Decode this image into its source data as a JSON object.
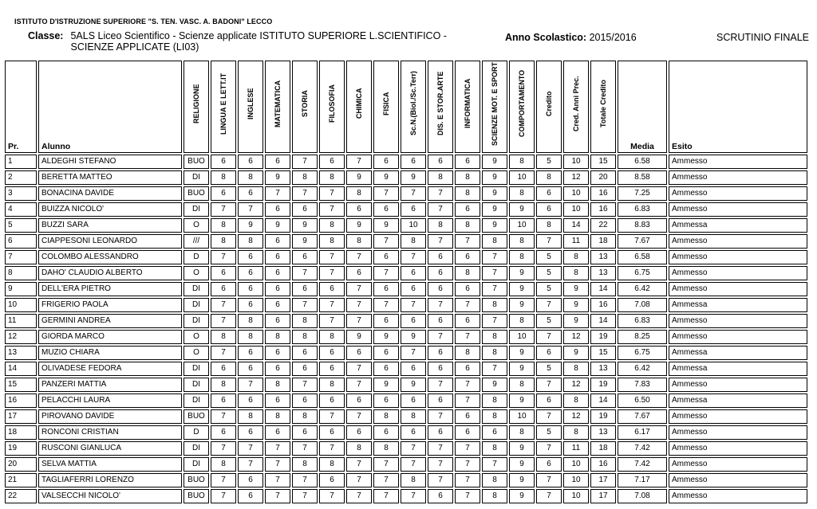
{
  "page": {
    "school_header": "ISTITUTO D'ISTRUZIONE SUPERIORE \"S. TEN. VASC. A. BADONI\" LECCO",
    "classe_label": "Classe:",
    "classe_value_lines": [
      "5ALS Liceo Scientifico - Scienze applicate ISTITUTO SUPERIORE L.SCIENTIFICO -",
      "SCIENZE APPLICATE (LI03)"
    ],
    "anno_label": "Anno Scolastico:",
    "anno_value": "2015/2016",
    "scrutinio_title": "SCRUTINIO FINALE"
  },
  "table": {
    "columns": [
      "Pr.",
      "Alunno",
      "RELIGIONE",
      "LINGUA E LETT.IT",
      "INGLESE",
      "MATEMATICA",
      "STORIA",
      "FILOSOFIA",
      "CHIMICA",
      "FISICA",
      "Sc.N.(Biol./Sc.Terr)",
      "DIS. E STOR.ARTE",
      "INFORMATICA",
      "SCIENZE MOT. E SPORT",
      "COMPORTAMENTO",
      "Credito",
      "Cred. Anni Prec.",
      "Totale Credito",
      "Media",
      "Esito"
    ],
    "rows": [
      {
        "pr": "1",
        "alunno": "ALDEGHI STEFANO",
        "religione": "BUO",
        "voti": [
          "6",
          "6",
          "6",
          "7",
          "6",
          "7",
          "6",
          "6",
          "6",
          "6",
          "9",
          "8"
        ],
        "credito": "5",
        "cred_anni_prec": "10",
        "totale_credito": "15",
        "media": "6.58",
        "esito": "Ammesso"
      },
      {
        "pr": "2",
        "alunno": "BERETTA MATTEO",
        "religione": "DI",
        "voti": [
          "8",
          "8",
          "9",
          "8",
          "8",
          "9",
          "9",
          "9",
          "8",
          "8",
          "9",
          "10"
        ],
        "credito": "8",
        "cred_anni_prec": "12",
        "totale_credito": "20",
        "media": "8.58",
        "esito": "Ammesso"
      },
      {
        "pr": "3",
        "alunno": "BONACINA DAVIDE",
        "religione": "BUO",
        "voti": [
          "6",
          "6",
          "7",
          "7",
          "7",
          "8",
          "7",
          "7",
          "7",
          "8",
          "9",
          "8"
        ],
        "credito": "6",
        "cred_anni_prec": "10",
        "totale_credito": "16",
        "media": "7.25",
        "esito": "Ammesso"
      },
      {
        "pr": "4",
        "alunno": "BUIZZA NICOLO'",
        "religione": "DI",
        "voti": [
          "7",
          "7",
          "6",
          "6",
          "7",
          "6",
          "6",
          "6",
          "7",
          "6",
          "9",
          "9"
        ],
        "credito": "6",
        "cred_anni_prec": "10",
        "totale_credito": "16",
        "media": "6.83",
        "esito": "Ammesso"
      },
      {
        "pr": "5",
        "alunno": "BUZZI SARA",
        "religione": "O",
        "voti": [
          "8",
          "9",
          "9",
          "9",
          "8",
          "9",
          "9",
          "10",
          "8",
          "8",
          "9",
          "10"
        ],
        "credito": "8",
        "cred_anni_prec": "14",
        "totale_credito": "22",
        "media": "8.83",
        "esito": "Ammessa"
      },
      {
        "pr": "6",
        "alunno": "CIAPPESONI LEONARDO",
        "religione": "///",
        "voti": [
          "8",
          "8",
          "6",
          "9",
          "8",
          "8",
          "7",
          "8",
          "7",
          "7",
          "8",
          "8"
        ],
        "credito": "7",
        "cred_anni_prec": "11",
        "totale_credito": "18",
        "media": "7.67",
        "esito": "Ammesso"
      },
      {
        "pr": "7",
        "alunno": "COLOMBO ALESSANDRO",
        "religione": "D",
        "voti": [
          "7",
          "6",
          "6",
          "6",
          "7",
          "7",
          "6",
          "7",
          "6",
          "6",
          "7",
          "8"
        ],
        "credito": "5",
        "cred_anni_prec": "8",
        "totale_credito": "13",
        "media": "6.58",
        "esito": "Ammesso"
      },
      {
        "pr": "8",
        "alunno": "DAHO' CLAUDIO ALBERTO",
        "religione": "O",
        "voti": [
          "6",
          "6",
          "6",
          "7",
          "7",
          "6",
          "7",
          "6",
          "6",
          "8",
          "7",
          "9"
        ],
        "credito": "5",
        "cred_anni_prec": "8",
        "totale_credito": "13",
        "media": "6.75",
        "esito": "Ammesso"
      },
      {
        "pr": "9",
        "alunno": "DELL'ERA PIETRO",
        "religione": "DI",
        "voti": [
          "6",
          "6",
          "6",
          "6",
          "6",
          "7",
          "6",
          "6",
          "6",
          "6",
          "7",
          "9"
        ],
        "credito": "5",
        "cred_anni_prec": "9",
        "totale_credito": "14",
        "media": "6.42",
        "esito": "Ammesso"
      },
      {
        "pr": "10",
        "alunno": "FRIGERIO PAOLA",
        "religione": "DI",
        "voti": [
          "7",
          "6",
          "6",
          "7",
          "7",
          "7",
          "7",
          "7",
          "7",
          "7",
          "8",
          "9"
        ],
        "credito": "7",
        "cred_anni_prec": "9",
        "totale_credito": "16",
        "media": "7.08",
        "esito": "Ammessa"
      },
      {
        "pr": "11",
        "alunno": "GERMINI ANDREA",
        "religione": "DI",
        "voti": [
          "7",
          "8",
          "6",
          "8",
          "7",
          "7",
          "6",
          "6",
          "6",
          "6",
          "7",
          "8"
        ],
        "credito": "5",
        "cred_anni_prec": "9",
        "totale_credito": "14",
        "media": "6.83",
        "esito": "Ammesso"
      },
      {
        "pr": "12",
        "alunno": "GIORDA MARCO",
        "religione": "O",
        "voti": [
          "8",
          "8",
          "8",
          "8",
          "8",
          "9",
          "9",
          "9",
          "7",
          "7",
          "8",
          "10"
        ],
        "credito": "7",
        "cred_anni_prec": "12",
        "totale_credito": "19",
        "media": "8.25",
        "esito": "Ammesso"
      },
      {
        "pr": "13",
        "alunno": "MUZIO CHIARA",
        "religione": "O",
        "voti": [
          "7",
          "6",
          "6",
          "6",
          "6",
          "6",
          "6",
          "7",
          "6",
          "8",
          "8",
          "9"
        ],
        "credito": "6",
        "cred_anni_prec": "9",
        "totale_credito": "15",
        "media": "6.75",
        "esito": "Ammessa"
      },
      {
        "pr": "14",
        "alunno": "OLIVADESE FEDORA",
        "religione": "DI",
        "voti": [
          "6",
          "6",
          "6",
          "6",
          "6",
          "7",
          "6",
          "6",
          "6",
          "6",
          "7",
          "9"
        ],
        "credito": "5",
        "cred_anni_prec": "8",
        "totale_credito": "13",
        "media": "6.42",
        "esito": "Ammessa"
      },
      {
        "pr": "15",
        "alunno": "PANZERI MATTIA",
        "religione": "DI",
        "voti": [
          "8",
          "7",
          "8",
          "7",
          "8",
          "7",
          "9",
          "9",
          "7",
          "7",
          "9",
          "8"
        ],
        "credito": "7",
        "cred_anni_prec": "12",
        "totale_credito": "19",
        "media": "7.83",
        "esito": "Ammesso"
      },
      {
        "pr": "16",
        "alunno": "PELACCHI LAURA",
        "religione": "DI",
        "voti": [
          "6",
          "6",
          "6",
          "6",
          "6",
          "6",
          "6",
          "6",
          "6",
          "7",
          "8",
          "9"
        ],
        "credito": "6",
        "cred_anni_prec": "8",
        "totale_credito": "14",
        "media": "6.50",
        "esito": "Ammessa"
      },
      {
        "pr": "17",
        "alunno": "PIROVANO DAVIDE",
        "religione": "BUO",
        "voti": [
          "7",
          "8",
          "8",
          "8",
          "7",
          "7",
          "8",
          "8",
          "7",
          "6",
          "8",
          "10"
        ],
        "credito": "7",
        "cred_anni_prec": "12",
        "totale_credito": "19",
        "media": "7.67",
        "esito": "Ammesso"
      },
      {
        "pr": "18",
        "alunno": "RONCONI CRISTIAN",
        "religione": "D",
        "voti": [
          "6",
          "6",
          "6",
          "6",
          "6",
          "6",
          "6",
          "6",
          "6",
          "6",
          "6",
          "8"
        ],
        "credito": "5",
        "cred_anni_prec": "8",
        "totale_credito": "13",
        "media": "6.17",
        "esito": "Ammesso"
      },
      {
        "pr": "19",
        "alunno": "RUSCONI GIANLUCA",
        "religione": "DI",
        "voti": [
          "7",
          "7",
          "7",
          "7",
          "7",
          "8",
          "8",
          "7",
          "7",
          "7",
          "8",
          "9"
        ],
        "credito": "7",
        "cred_anni_prec": "11",
        "totale_credito": "18",
        "media": "7.42",
        "esito": "Ammesso"
      },
      {
        "pr": "20",
        "alunno": "SELVA MATTIA",
        "religione": "DI",
        "voti": [
          "8",
          "7",
          "7",
          "8",
          "8",
          "7",
          "7",
          "7",
          "7",
          "7",
          "7",
          "9"
        ],
        "credito": "6",
        "cred_anni_prec": "10",
        "totale_credito": "16",
        "media": "7.42",
        "esito": "Ammesso"
      },
      {
        "pr": "21",
        "alunno": "TAGLIAFERRI LORENZO",
        "religione": "BUO",
        "voti": [
          "7",
          "6",
          "7",
          "7",
          "6",
          "7",
          "7",
          "8",
          "7",
          "7",
          "8",
          "9"
        ],
        "credito": "7",
        "cred_anni_prec": "10",
        "totale_credito": "17",
        "media": "7.17",
        "esito": "Ammesso"
      },
      {
        "pr": "22",
        "alunno": "VALSECCHI NICOLO'",
        "religione": "BUO",
        "voti": [
          "7",
          "6",
          "7",
          "7",
          "7",
          "7",
          "7",
          "7",
          "6",
          "7",
          "8",
          "9"
        ],
        "credito": "7",
        "cred_anni_prec": "10",
        "totale_credito": "17",
        "media": "7.08",
        "esito": "Ammesso"
      }
    ]
  }
}
